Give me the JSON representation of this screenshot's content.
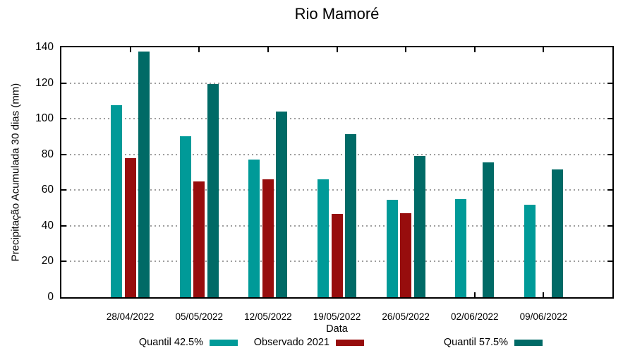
{
  "chart_data": {
    "type": "bar",
    "title": "Rio Mamoré",
    "xlabel": "Data",
    "ylabel": "Precipitação Acumulada 30 dias (mm)",
    "categories": [
      "28/04/2022",
      "05/05/2022",
      "12/05/2022",
      "19/05/2022",
      "26/05/2022",
      "02/06/2022",
      "09/06/2022"
    ],
    "series": [
      {
        "name": "Quantil 42.5%",
        "color": "#009A98",
        "values": [
          107.5,
          90,
          77,
          66,
          54.5,
          55,
          52
        ]
      },
      {
        "name": "Observado 2021",
        "color": "#970D0D",
        "values": [
          78,
          65,
          66,
          46.5,
          47,
          null,
          null
        ]
      },
      {
        "name": "Quantil 57.5%",
        "color": "#006A66",
        "values": [
          137.5,
          119.5,
          104,
          91.5,
          79,
          75.5,
          71.5
        ]
      }
    ],
    "ylim": [
      0,
      140
    ],
    "y_ticks": [
      0,
      20,
      40,
      60,
      80,
      100,
      120,
      140
    ],
    "grid": "horizontal-dotted-gray",
    "legend_position": "bottom",
    "axis_color": "#000000",
    "grid_color": "#9e9e9e"
  }
}
